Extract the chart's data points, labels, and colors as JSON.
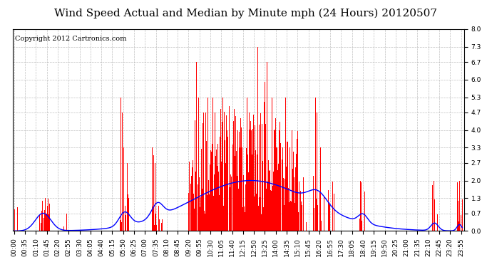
{
  "title": "Wind Speed Actual and Median by Minute mph (24 Hours) 20120507",
  "copyright": "Copyright 2012 Cartronics.com",
  "bar_color": "#ff0000",
  "line_color": "#0000ff",
  "background_color": "#ffffff",
  "plot_bg_color": "#ffffff",
  "grid_color": "#b0b0b0",
  "ylim": [
    0,
    8.0
  ],
  "yticks": [
    0.0,
    0.7,
    1.3,
    2.0,
    2.7,
    3.3,
    4.0,
    4.7,
    5.3,
    6.0,
    6.7,
    7.3,
    8.0
  ],
  "xtick_labels": [
    "00:00",
    "00:35",
    "01:10",
    "01:45",
    "02:20",
    "02:55",
    "03:30",
    "04:05",
    "04:40",
    "05:15",
    "05:50",
    "06:25",
    "07:00",
    "07:35",
    "08:10",
    "08:45",
    "09:20",
    "09:55",
    "10:30",
    "11:05",
    "11:40",
    "12:15",
    "12:50",
    "13:25",
    "14:00",
    "14:35",
    "15:10",
    "15:45",
    "16:20",
    "16:55",
    "17:30",
    "18:05",
    "18:40",
    "19:15",
    "19:50",
    "20:25",
    "21:00",
    "21:35",
    "22:10",
    "22:45",
    "23:20",
    "23:55"
  ],
  "title_fontsize": 11,
  "tick_fontsize": 6.5,
  "copyright_fontsize": 7
}
